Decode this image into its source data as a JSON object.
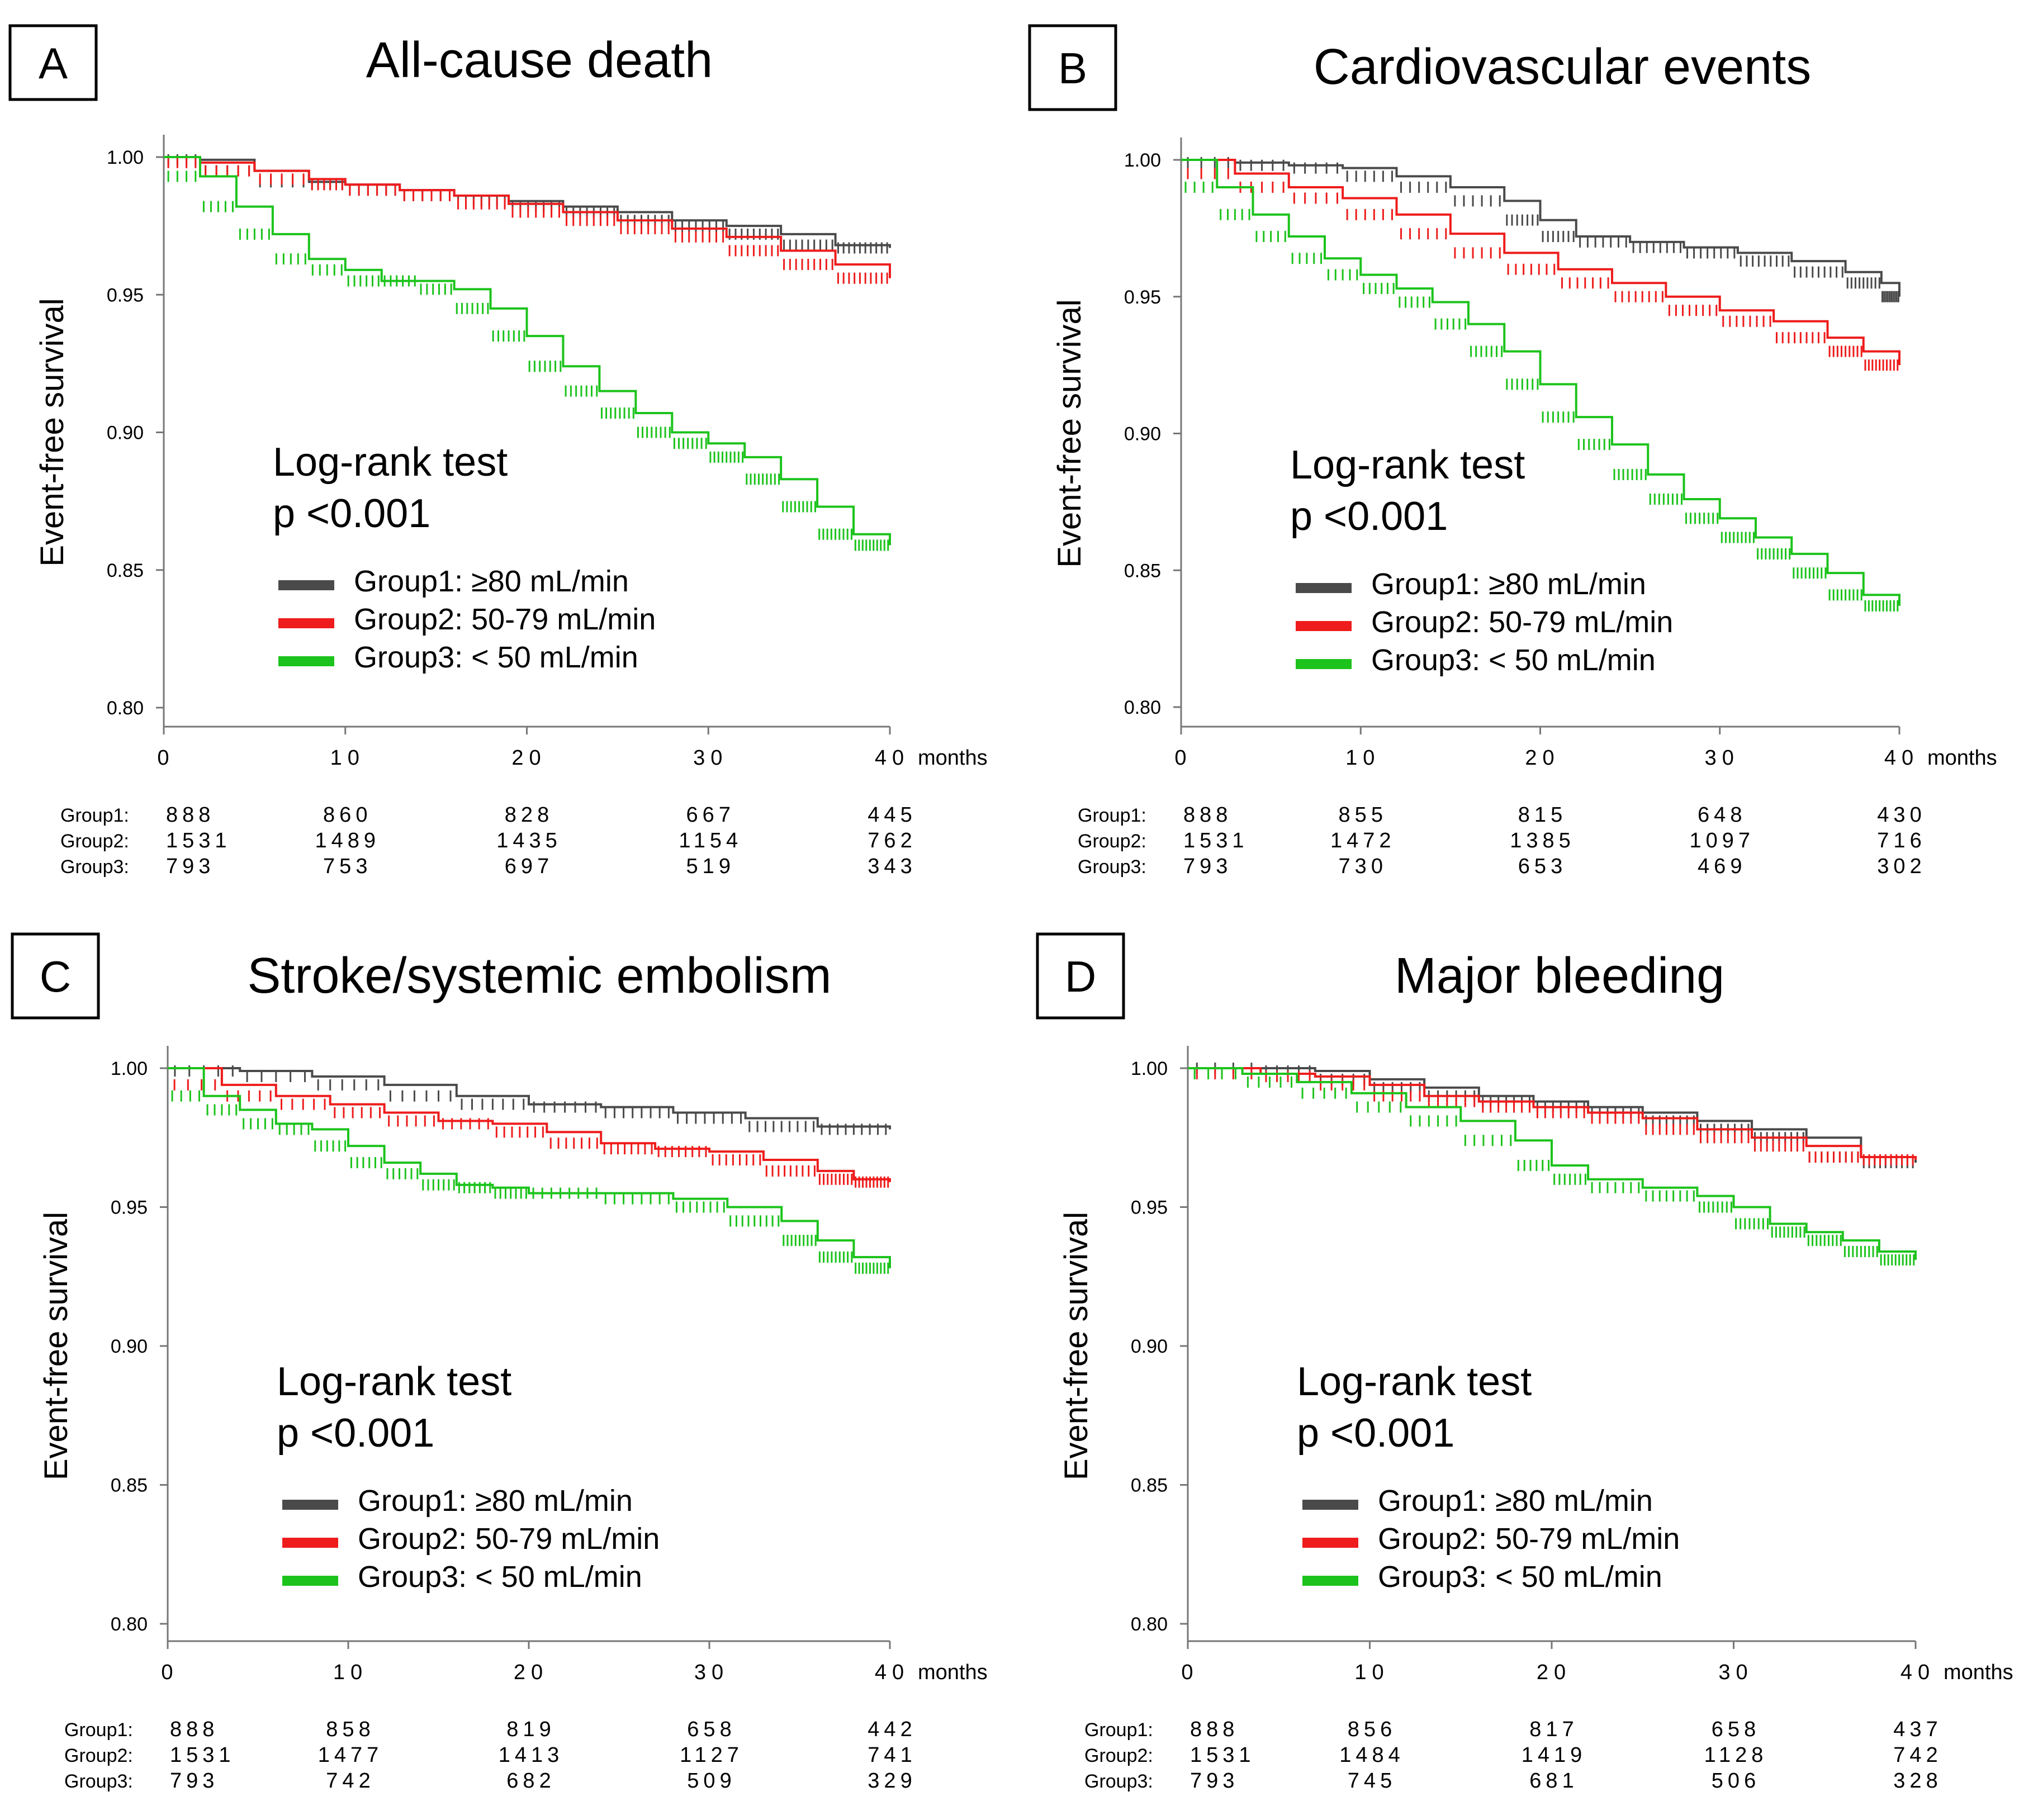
{
  "figure": {
    "series_colors": [
      "#4a4a4a",
      "#ee1c1c",
      "#1cc31c"
    ],
    "risk_table_labels": [
      "Group1:",
      "Group2:",
      "Group3:"
    ]
  },
  "chart_data": [
    {
      "panel": "A",
      "title": "All-cause death",
      "type": "line",
      "ylabel": "Event-free survival",
      "xlabel": "months",
      "xlim": [
        0,
        40
      ],
      "ylim": [
        0.8,
        1.0
      ],
      "xticks": [
        0,
        10,
        20,
        30,
        40
      ],
      "yticks": [
        0.8,
        0.85,
        0.9,
        0.95,
        1.0
      ],
      "ytick_labels": [
        "0.80",
        "0.85",
        "0.90",
        "0.95",
        "1.00"
      ],
      "stat_test": "Log-rank test",
      "p_value": "p <0.001",
      "series": [
        {
          "name": "Group1: ≥80 mL/min",
          "color": "#4a4a4a",
          "points": [
            [
              0,
              1.0
            ],
            [
              2,
              0.999
            ],
            [
              5,
              0.995
            ],
            [
              8,
              0.991
            ],
            [
              10,
              0.99
            ],
            [
              13,
              0.988
            ],
            [
              16,
              0.986
            ],
            [
              19,
              0.984
            ],
            [
              22,
              0.982
            ],
            [
              25,
              0.98
            ],
            [
              28,
              0.977
            ],
            [
              31,
              0.975
            ],
            [
              34,
              0.972
            ],
            [
              37,
              0.968
            ],
            [
              40,
              0.967
            ]
          ]
        },
        {
          "name": "Group2: 50-79 mL/min",
          "color": "#ee1c1c",
          "points": [
            [
              0,
              1.0
            ],
            [
              2,
              0.998
            ],
            [
              5,
              0.995
            ],
            [
              8,
              0.992
            ],
            [
              10,
              0.99
            ],
            [
              13,
              0.988
            ],
            [
              16,
              0.986
            ],
            [
              19,
              0.983
            ],
            [
              22,
              0.98
            ],
            [
              25,
              0.977
            ],
            [
              28,
              0.974
            ],
            [
              31,
              0.971
            ],
            [
              34,
              0.966
            ],
            [
              37,
              0.961
            ],
            [
              40,
              0.956
            ]
          ]
        },
        {
          "name": "Group3:  < 50 mL/min",
          "color": "#1cc31c",
          "points": [
            [
              0,
              1.0
            ],
            [
              2,
              0.993
            ],
            [
              4,
              0.982
            ],
            [
              6,
              0.972
            ],
            [
              8,
              0.963
            ],
            [
              10,
              0.959
            ],
            [
              12,
              0.955
            ],
            [
              14,
              0.955
            ],
            [
              16,
              0.952
            ],
            [
              18,
              0.945
            ],
            [
              20,
              0.935
            ],
            [
              22,
              0.924
            ],
            [
              24,
              0.915
            ],
            [
              26,
              0.907
            ],
            [
              28,
              0.9
            ],
            [
              30,
              0.896
            ],
            [
              32,
              0.891
            ],
            [
              34,
              0.883
            ],
            [
              36,
              0.873
            ],
            [
              38,
              0.863
            ],
            [
              40,
              0.859
            ]
          ]
        }
      ],
      "risk_table": [
        [
          "888",
          "860",
          "828",
          "667",
          "445"
        ],
        [
          "1531",
          "1489",
          "1435",
          "1154",
          "762"
        ],
        [
          "793",
          "753",
          "697",
          "519",
          "343"
        ]
      ]
    },
    {
      "panel": "B",
      "title": "Cardiovascular events",
      "type": "line",
      "ylabel": "Event-free survival",
      "xlabel": "months",
      "xlim": [
        0,
        40
      ],
      "ylim": [
        0.8,
        1.0
      ],
      "xticks": [
        0,
        10,
        20,
        30,
        40
      ],
      "yticks": [
        0.8,
        0.85,
        0.9,
        0.95,
        1.0
      ],
      "ytick_labels": [
        "0.80",
        "0.85",
        "0.90",
        "0.95",
        "1.00"
      ],
      "stat_test": "Log-rank test",
      "p_value": "p <0.001",
      "series": [
        {
          "name": "Group1: ≥80 mL/min",
          "color": "#4a4a4a",
          "points": [
            [
              0,
              1.0
            ],
            [
              3,
              0.999
            ],
            [
              6,
              0.998
            ],
            [
              9,
              0.997
            ],
            [
              12,
              0.994
            ],
            [
              15,
              0.99
            ],
            [
              18,
              0.985
            ],
            [
              20,
              0.978
            ],
            [
              22,
              0.972
            ],
            [
              25,
              0.97
            ],
            [
              28,
              0.968
            ],
            [
              31,
              0.966
            ],
            [
              34,
              0.963
            ],
            [
              37,
              0.959
            ],
            [
              39,
              0.955
            ],
            [
              40,
              0.95
            ]
          ]
        },
        {
          "name": "Group2: 50-79 mL/min",
          "color": "#ee1c1c",
          "points": [
            [
              0,
              1.0
            ],
            [
              3,
              0.995
            ],
            [
              6,
              0.99
            ],
            [
              9,
              0.986
            ],
            [
              12,
              0.98
            ],
            [
              15,
              0.973
            ],
            [
              18,
              0.966
            ],
            [
              21,
              0.96
            ],
            [
              24,
              0.955
            ],
            [
              27,
              0.95
            ],
            [
              30,
              0.945
            ],
            [
              33,
              0.941
            ],
            [
              36,
              0.935
            ],
            [
              38,
              0.93
            ],
            [
              40,
              0.925
            ]
          ]
        },
        {
          "name": "Group3:  < 50 mL/min",
          "color": "#1cc31c",
          "points": [
            [
              0,
              1.0
            ],
            [
              2,
              0.99
            ],
            [
              4,
              0.98
            ],
            [
              6,
              0.972
            ],
            [
              8,
              0.964
            ],
            [
              10,
              0.958
            ],
            [
              12,
              0.953
            ],
            [
              14,
              0.948
            ],
            [
              16,
              0.94
            ],
            [
              18,
              0.93
            ],
            [
              20,
              0.918
            ],
            [
              22,
              0.906
            ],
            [
              24,
              0.896
            ],
            [
              26,
              0.885
            ],
            [
              28,
              0.876
            ],
            [
              30,
              0.869
            ],
            [
              32,
              0.862
            ],
            [
              34,
              0.856
            ],
            [
              36,
              0.849
            ],
            [
              38,
              0.841
            ],
            [
              40,
              0.837
            ]
          ]
        }
      ],
      "risk_table": [
        [
          "888",
          "855",
          "815",
          "648",
          "430"
        ],
        [
          "1531",
          "1472",
          "1385",
          "1097",
          "716"
        ],
        [
          "793",
          "730",
          "653",
          "469",
          "302"
        ]
      ]
    },
    {
      "panel": "C",
      "title": "Stroke/systemic embolism",
      "type": "line",
      "ylabel": "Event-free survival",
      "xlabel": "months",
      "xlim": [
        0,
        40
      ],
      "ylim": [
        0.8,
        1.0
      ],
      "xticks": [
        0,
        10,
        20,
        30,
        40
      ],
      "yticks": [
        0.8,
        0.85,
        0.9,
        0.95,
        1.0
      ],
      "ytick_labels": [
        "0.80",
        "0.85",
        "0.90",
        "0.95",
        "1.00"
      ],
      "stat_test": "Log-rank test",
      "p_value": "p <0.001",
      "series": [
        {
          "name": "Group1: ≥80 mL/min",
          "color": "#4a4a4a",
          "points": [
            [
              0,
              1.0
            ],
            [
              4,
              0.999
            ],
            [
              8,
              0.997
            ],
            [
              12,
              0.994
            ],
            [
              16,
              0.99
            ],
            [
              20,
              0.987
            ],
            [
              24,
              0.986
            ],
            [
              28,
              0.984
            ],
            [
              32,
              0.982
            ],
            [
              36,
              0.979
            ],
            [
              40,
              0.978
            ]
          ]
        },
        {
          "name": "Group2: 50-79 mL/min",
          "color": "#ee1c1c",
          "points": [
            [
              0,
              1.0
            ],
            [
              3,
              0.994
            ],
            [
              6,
              0.99
            ],
            [
              9,
              0.987
            ],
            [
              12,
              0.984
            ],
            [
              15,
              0.981
            ],
            [
              18,
              0.98
            ],
            [
              21,
              0.977
            ],
            [
              24,
              0.973
            ],
            [
              27,
              0.971
            ],
            [
              30,
              0.97
            ],
            [
              33,
              0.967
            ],
            [
              36,
              0.963
            ],
            [
              38,
              0.96
            ],
            [
              40,
              0.959
            ]
          ]
        },
        {
          "name": "Group3:  < 50 mL/min",
          "color": "#1cc31c",
          "points": [
            [
              0,
              1.0
            ],
            [
              2,
              0.99
            ],
            [
              4,
              0.985
            ],
            [
              6,
              0.98
            ],
            [
              8,
              0.978
            ],
            [
              10,
              0.972
            ],
            [
              12,
              0.966
            ],
            [
              14,
              0.962
            ],
            [
              16,
              0.958
            ],
            [
              18,
              0.957
            ],
            [
              20,
              0.955
            ],
            [
              24,
              0.955
            ],
            [
              28,
              0.953
            ],
            [
              31,
              0.95
            ],
            [
              34,
              0.945
            ],
            [
              36,
              0.938
            ],
            [
              38,
              0.932
            ],
            [
              40,
              0.928
            ]
          ]
        }
      ],
      "risk_table": [
        [
          "888",
          "858",
          "819",
          "658",
          "442"
        ],
        [
          "1531",
          "1477",
          "1413",
          "1127",
          "741"
        ],
        [
          "793",
          "742",
          "682",
          "509",
          "329"
        ]
      ]
    },
    {
      "panel": "D",
      "title": "Major bleeding",
      "type": "line",
      "ylabel": "Event-free survival",
      "xlabel": "months",
      "xlim": [
        0,
        40
      ],
      "ylim": [
        0.8,
        1.0
      ],
      "xticks": [
        0,
        10,
        20,
        30,
        40
      ],
      "yticks": [
        0.8,
        0.85,
        0.9,
        0.95,
        1.0
      ],
      "ytick_labels": [
        "0.80",
        "0.85",
        "0.90",
        "0.95",
        "1.00"
      ],
      "stat_test": "Log-rank test",
      "p_value": "p <0.001",
      "series": [
        {
          "name": "Group1: ≥80 mL/min",
          "color": "#4a4a4a",
          "points": [
            [
              0,
              1.0
            ],
            [
              4,
              1.0
            ],
            [
              7,
              0.999
            ],
            [
              10,
              0.996
            ],
            [
              13,
              0.993
            ],
            [
              16,
              0.99
            ],
            [
              19,
              0.988
            ],
            [
              22,
              0.986
            ],
            [
              25,
              0.984
            ],
            [
              28,
              0.981
            ],
            [
              31,
              0.978
            ],
            [
              34,
              0.975
            ],
            [
              37,
              0.968
            ],
            [
              40,
              0.966
            ]
          ]
        },
        {
          "name": "Group2: 50-79 mL/min",
          "color": "#ee1c1c",
          "points": [
            [
              0,
              1.0
            ],
            [
              4,
              0.998
            ],
            [
              7,
              0.997
            ],
            [
              10,
              0.994
            ],
            [
              13,
              0.99
            ],
            [
              16,
              0.988
            ],
            [
              19,
              0.986
            ],
            [
              22,
              0.984
            ],
            [
              25,
              0.982
            ],
            [
              28,
              0.978
            ],
            [
              31,
              0.975
            ],
            [
              34,
              0.972
            ],
            [
              37,
              0.968
            ],
            [
              40,
              0.967
            ]
          ]
        },
        {
          "name": "Group3:  < 50 mL/min",
          "color": "#1cc31c",
          "points": [
            [
              0,
              1.0
            ],
            [
              3,
              0.998
            ],
            [
              6,
              0.995
            ],
            [
              9,
              0.991
            ],
            [
              12,
              0.986
            ],
            [
              15,
              0.981
            ],
            [
              18,
              0.974
            ],
            [
              20,
              0.965
            ],
            [
              22,
              0.96
            ],
            [
              25,
              0.957
            ],
            [
              28,
              0.954
            ],
            [
              30,
              0.95
            ],
            [
              32,
              0.944
            ],
            [
              34,
              0.941
            ],
            [
              36,
              0.938
            ],
            [
              38,
              0.934
            ],
            [
              40,
              0.931
            ]
          ]
        }
      ],
      "risk_table": [
        [
          "888",
          "856",
          "817",
          "658",
          "437"
        ],
        [
          "1531",
          "1484",
          "1419",
          "1128",
          "742"
        ],
        [
          "793",
          "745",
          "681",
          "506",
          "328"
        ]
      ]
    }
  ]
}
